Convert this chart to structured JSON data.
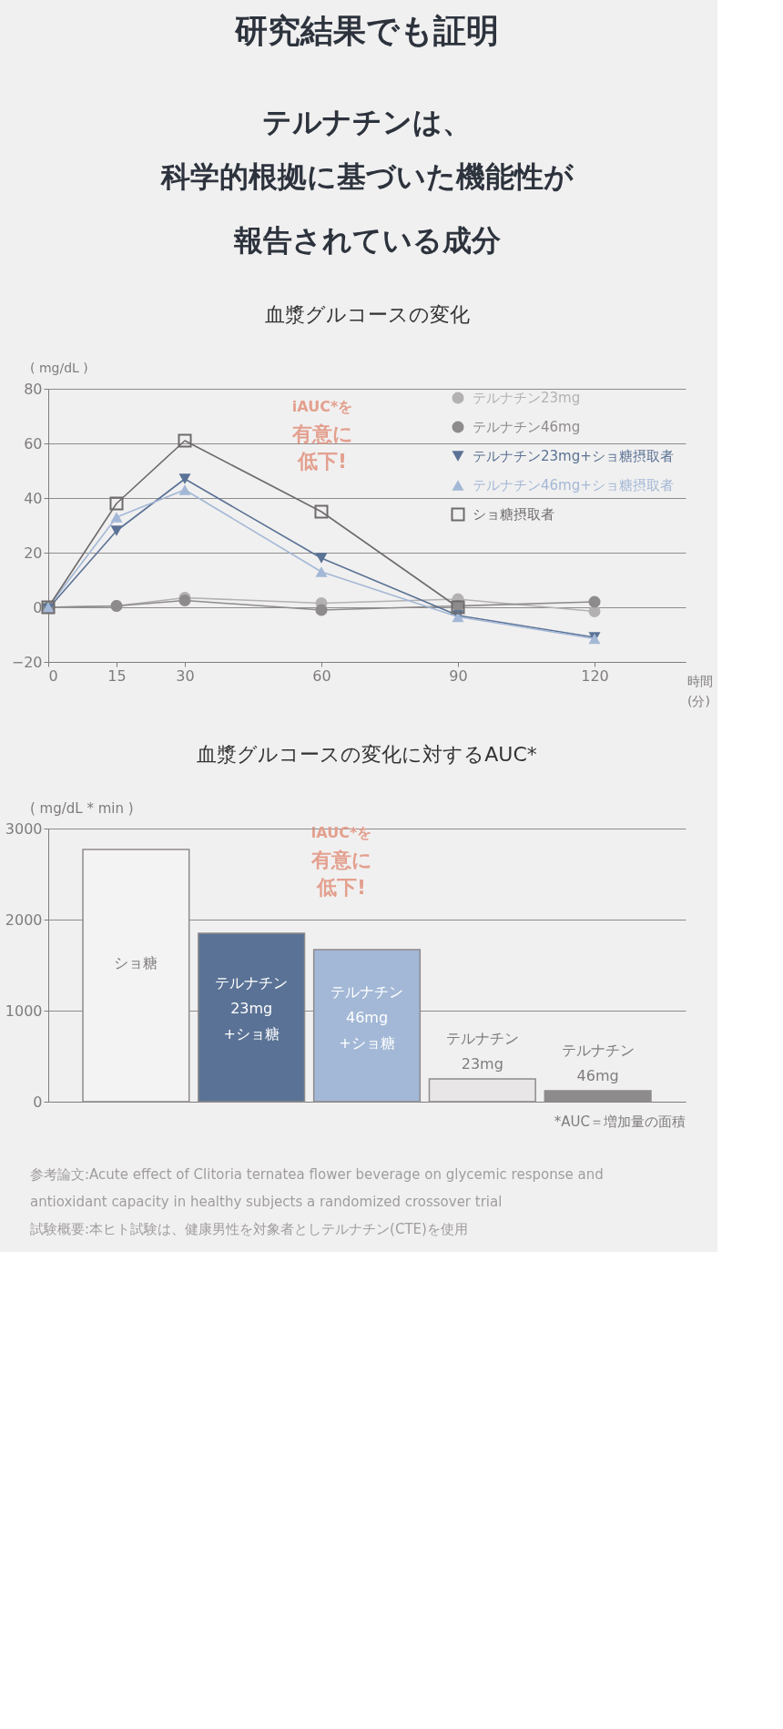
{
  "chart_data": [
    {
      "type": "line",
      "title": "血漿グルコースの変化",
      "xlabel": "時間\n(分)",
      "ylabel": "( mg/dL )",
      "annotations": [
        "研究結果でも証明",
        "テルナチンは、",
        "科学的根拠に基づいた機能性が",
        "報告されている成分",
        "iAUC*を",
        "有意に",
        "低下!"
      ],
      "x": [
        0,
        15,
        30,
        60,
        90,
        120
      ],
      "series": [
        {
          "name": "テルナチン23mg",
          "color": "#b3b1b2",
          "marker": "circle",
          "values": [
            0,
            0.5,
            3.5,
            1.5,
            3,
            -1.5
          ]
        },
        {
          "name": "テルナチン46mg",
          "color": "#8e8b8c",
          "marker": "circle",
          "values": [
            0,
            0.5,
            2.5,
            -1,
            0.5,
            2
          ]
        },
        {
          "name": "テルナチン23mg+ショ糖摂取者",
          "color": "#5a7295",
          "marker": "triangle-down",
          "values": [
            -0.5,
            28,
            47,
            18,
            -3,
            -11
          ]
        },
        {
          "name": "テルナチン46mg+ショ糖摂取者",
          "color": "#a3b8d6",
          "marker": "triangle-up",
          "values": [
            0,
            33,
            43,
            13,
            -3.5,
            -11.5
          ]
        },
        {
          "name": "ショ糖摂取者",
          "color": "#6e6b6c",
          "marker": "square",
          "values": [
            0,
            38,
            61,
            35,
            0,
            null
          ]
        }
      ],
      "xlim": [
        0,
        140
      ],
      "xticks": [
        0,
        15,
        30,
        60,
        90,
        120
      ],
      "ylim": [
        -20,
        80
      ],
      "yticks": [
        -20,
        0,
        20,
        40,
        60,
        80
      ],
      "grid": "y",
      "legend": "top right"
    },
    {
      "type": "bar",
      "title": "血漿グルコースの変化に対するAUC*",
      "ylabel": "( mg/dL * min )",
      "annotations": [
        "iAUC*を",
        "有意に",
        "低下!",
        "*AUC＝増加量の面積",
        "参考論文:Acute effect of Clitoria ternatea flower beverage on glycemic response and antioxidant capacity in healthy subjects a randomized crossover trial",
        "試験概要:本ヒト試験は、健康男性を対象者としテルナチン(CTE)を使用"
      ],
      "categories": [
        "ショ糖",
        "テルナチン\n23mg\n+ショ糖",
        "テルナチン\n46mg\n+ショ糖",
        "テルナチン\n23mg",
        "テルナチン\n46mg"
      ],
      "values": [
        2770,
        1850,
        1670,
        250,
        120
      ],
      "colors": [
        "#f4f3f3",
        "#5a7295",
        "#a3b8d6",
        "#e8e6e6",
        "#8e8b8c"
      ],
      "ylim": [
        0,
        3000
      ],
      "yticks": [
        0,
        1000,
        2000,
        3000
      ],
      "grid": "y",
      "tick_labels": "y"
    }
  ]
}
